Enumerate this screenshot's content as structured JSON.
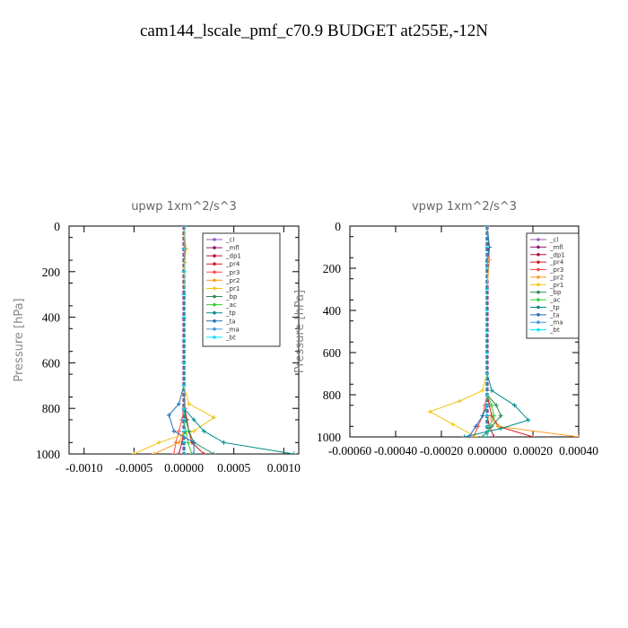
{
  "figure": {
    "title": "cam144_lscale_pmf_c70.9  BUDGET at255E,-12N"
  },
  "legend_entries": [
    {
      "label": "_cl",
      "color": "#9b59b6"
    },
    {
      "label": "_mfl",
      "color": "#8e1a6e"
    },
    {
      "label": "_dp1",
      "color": "#b0103c"
    },
    {
      "label": "_pr4",
      "color": "#cc1f1f"
    },
    {
      "label": "_pr3",
      "color": "#ff4d4d"
    },
    {
      "label": "_pr2",
      "color": "#ff9f1a"
    },
    {
      "label": "_pr1",
      "color": "#f1c40f"
    },
    {
      "label": "_bp",
      "color": "#2e8b57"
    },
    {
      "label": "_ac",
      "color": "#32cd32"
    },
    {
      "label": "_tp",
      "color": "#008b8b"
    },
    {
      "label": "_ta",
      "color": "#1f6fb4"
    },
    {
      "label": "_ma",
      "color": "#3d9bd9"
    },
    {
      "label": "_bt",
      "color": "#00e5ff"
    }
  ],
  "chart_data": [
    {
      "type": "line",
      "title": "upwp   1xm^2/s^3",
      "ylabel": "Pressure [hPa]",
      "xlabel": "",
      "y_axis_inverted": true,
      "xlim": [
        -0.00115,
        0.00115
      ],
      "ylim": [
        0,
        1000
      ],
      "xticks": [
        -0.001,
        -0.0005,
        0.0,
        0.0005,
        0.001
      ],
      "xtick_labels": [
        "-0.0010",
        "-0.0005",
        "0.00000",
        "0.0005",
        "0.0010"
      ],
      "yticks": [
        0,
        200,
        400,
        600,
        800,
        1000
      ],
      "ytick_labels": [
        "0",
        "200",
        "400",
        "600",
        "800",
        "1000"
      ],
      "legend_position": "top-right",
      "series": [
        {
          "name": "_cl",
          "x": [
            0,
            0,
            0,
            0,
            0,
            0,
            0,
            0,
            0,
            0,
            0,
            0,
            0
          ],
          "y": [
            0,
            100,
            200,
            300,
            400,
            500,
            600,
            700,
            800,
            850,
            900,
            950,
            1000
          ]
        },
        {
          "name": "_mfl",
          "x": [
            0,
            0,
            0,
            0,
            0,
            0,
            0,
            0,
            0,
            0,
            0,
            0,
            0
          ],
          "y": [
            0,
            100,
            200,
            300,
            400,
            500,
            600,
            700,
            800,
            850,
            900,
            950,
            1000
          ]
        },
        {
          "name": "_dp1",
          "x": [
            0,
            0,
            0,
            0,
            0,
            0,
            0,
            0,
            0,
            0,
            0,
            -2e-05,
            -5e-05
          ],
          "y": [
            0,
            100,
            200,
            300,
            400,
            500,
            600,
            700,
            800,
            850,
            900,
            950,
            1000
          ]
        },
        {
          "name": "_pr4",
          "x": [
            0,
            0,
            0,
            0,
            0,
            0,
            0,
            0,
            1e-05,
            3e-05,
            5e-05,
            8e-05,
            0.0002
          ],
          "y": [
            0,
            100,
            200,
            300,
            400,
            500,
            600,
            700,
            800,
            850,
            900,
            950,
            1000
          ]
        },
        {
          "name": "_pr3",
          "x": [
            0,
            1e-05,
            0,
            0,
            0,
            0,
            0,
            0,
            0,
            -2e-05,
            -5e-05,
            -8e-05,
            -0.0001
          ],
          "y": [
            0,
            100,
            200,
            300,
            400,
            500,
            600,
            700,
            800,
            850,
            900,
            950,
            1000
          ]
        },
        {
          "name": "_pr2",
          "x": [
            0,
            2e-05,
            1e-05,
            0,
            0,
            0,
            0,
            0,
            0,
            0,
            0,
            -5e-05,
            -0.0003
          ],
          "y": [
            0,
            100,
            160,
            300,
            400,
            500,
            600,
            700,
            800,
            850,
            900,
            950,
            1000
          ]
        },
        {
          "name": "_pr1",
          "x": [
            0,
            0,
            0,
            0,
            0,
            0,
            0,
            0,
            5e-05,
            0.0003,
            0.0001,
            -0.00025,
            -0.0005
          ],
          "y": [
            0,
            100,
            200,
            300,
            400,
            500,
            600,
            700,
            780,
            840,
            900,
            950,
            1000
          ]
        },
        {
          "name": "_bp",
          "x": [
            0,
            0,
            0,
            0,
            0,
            0,
            0,
            0,
            0,
            2e-05,
            5e-05,
            0.0001,
            0.0003
          ],
          "y": [
            0,
            100,
            200,
            300,
            400,
            500,
            600,
            700,
            800,
            850,
            900,
            950,
            1000
          ]
        },
        {
          "name": "_ac",
          "x": [
            0,
            0,
            0,
            0,
            0,
            0,
            0,
            0,
            0,
            0,
            2e-05,
            4e-05,
            8e-05
          ],
          "y": [
            0,
            100,
            200,
            300,
            400,
            500,
            600,
            700,
            800,
            850,
            900,
            950,
            1000
          ]
        },
        {
          "name": "_tp",
          "x": [
            0,
            0,
            0,
            0,
            0,
            0,
            0,
            0,
            0,
            0.0001,
            0.0002,
            0.0004,
            0.0011
          ],
          "y": [
            0,
            100,
            200,
            300,
            400,
            500,
            600,
            700,
            800,
            850,
            900,
            950,
            1000
          ]
        },
        {
          "name": "_ta",
          "x": [
            0,
            0,
            0,
            0,
            0,
            0,
            0,
            0,
            -5e-05,
            -0.00015,
            -0.0001,
            0.0001,
            0.0001
          ],
          "y": [
            0,
            100,
            200,
            300,
            400,
            500,
            600,
            700,
            780,
            830,
            900,
            950,
            1000
          ]
        },
        {
          "name": "_ma",
          "x": [
            0,
            0,
            0,
            0,
            0,
            0,
            0,
            0,
            0,
            0,
            0,
            0,
            0
          ],
          "y": [
            0,
            100,
            200,
            300,
            400,
            500,
            600,
            700,
            800,
            850,
            900,
            950,
            1000
          ]
        },
        {
          "name": "_bt",
          "x": [
            0,
            0,
            0,
            0,
            0,
            0,
            0,
            0,
            0,
            0,
            0,
            0,
            0
          ],
          "y": [
            0,
            100,
            200,
            300,
            400,
            500,
            600,
            700,
            800,
            850,
            900,
            950,
            1000
          ]
        }
      ]
    },
    {
      "type": "line",
      "title": "vpwp   1xm^2/s^3",
      "ylabel": "Pressure [hPa]",
      "xlabel": "",
      "y_axis_inverted": true,
      "xlim": [
        -0.0006,
        0.0004
      ],
      "ylim": [
        0,
        1000
      ],
      "xticks": [
        -0.0006,
        -0.0004,
        -0.0002,
        0.0,
        0.0002,
        0.0004
      ],
      "xtick_labels": [
        "-0.00060",
        "-0.00040",
        "-0.00020",
        "0.00000",
        "0.00020",
        "0.00040"
      ],
      "yticks": [
        0,
        200,
        400,
        600,
        800,
        1000
      ],
      "ytick_labels": [
        "0",
        "200",
        "400",
        "600",
        "800",
        "1000"
      ],
      "legend_position": "top-right",
      "series": [
        {
          "name": "_cl",
          "x": [
            0,
            0,
            0,
            0,
            0,
            0,
            0,
            0,
            0,
            0,
            0,
            0,
            0
          ],
          "y": [
            0,
            100,
            200,
            300,
            400,
            500,
            600,
            700,
            800,
            850,
            900,
            950,
            1000
          ]
        },
        {
          "name": "_mfl",
          "x": [
            0,
            0,
            0,
            0,
            0,
            0,
            0,
            0,
            0,
            0,
            0,
            0,
            0
          ],
          "y": [
            0,
            100,
            200,
            300,
            400,
            500,
            600,
            700,
            800,
            850,
            900,
            950,
            1000
          ]
        },
        {
          "name": "_dp1",
          "x": [
            0,
            0,
            0,
            0,
            0,
            0,
            0,
            0,
            0,
            0,
            0,
            1e-05,
            3e-05
          ],
          "y": [
            0,
            100,
            200,
            300,
            400,
            500,
            600,
            700,
            800,
            850,
            900,
            950,
            1000
          ]
        },
        {
          "name": "_pr4",
          "x": [
            0,
            0,
            0,
            0,
            0,
            0,
            0,
            0,
            0,
            1e-05,
            2e-05,
            5e-05,
            0.0002
          ],
          "y": [
            0,
            100,
            200,
            300,
            400,
            500,
            600,
            700,
            800,
            850,
            900,
            950,
            1000
          ]
        },
        {
          "name": "_pr3",
          "x": [
            0,
            1e-05,
            0,
            0,
            0,
            0,
            0,
            0,
            0,
            -1e-05,
            -2e-05,
            -4e-05,
            -6e-05
          ],
          "y": [
            0,
            100,
            200,
            300,
            400,
            500,
            600,
            700,
            800,
            850,
            900,
            950,
            1000
          ]
        },
        {
          "name": "_pr2",
          "x": [
            0,
            1e-05,
            1e-05,
            0,
            0,
            0,
            0,
            0,
            0,
            0,
            0,
            5e-05,
            0.0004
          ],
          "y": [
            0,
            100,
            160,
            300,
            400,
            500,
            600,
            700,
            800,
            850,
            900,
            950,
            1000
          ]
        },
        {
          "name": "_pr1",
          "x": [
            0,
            0,
            0,
            0,
            0,
            0,
            0,
            0,
            -2e-05,
            -0.00012,
            -0.00025,
            -0.00015,
            -5e-05
          ],
          "y": [
            0,
            100,
            200,
            300,
            400,
            500,
            600,
            700,
            780,
            830,
            880,
            940,
            1000
          ]
        },
        {
          "name": "_bp",
          "x": [
            0,
            0,
            0,
            0,
            0,
            0,
            0,
            0,
            0,
            4e-05,
            6e-05,
            2e-05,
            -2e-05
          ],
          "y": [
            0,
            100,
            200,
            300,
            400,
            500,
            600,
            700,
            800,
            850,
            900,
            950,
            1000
          ]
        },
        {
          "name": "_ac",
          "x": [
            0,
            0,
            0,
            0,
            0,
            0,
            0,
            0,
            0,
            2e-05,
            3e-05,
            1e-05,
            0
          ],
          "y": [
            0,
            100,
            200,
            300,
            400,
            500,
            600,
            700,
            800,
            850,
            900,
            950,
            1000
          ]
        },
        {
          "name": "_tp",
          "x": [
            0,
            0,
            0,
            0,
            0,
            0,
            0,
            0,
            2e-05,
            0.00012,
            0.00018,
            6e-05,
            -0.0001
          ],
          "y": [
            0,
            100,
            200,
            300,
            400,
            500,
            600,
            700,
            780,
            850,
            920,
            960,
            1000
          ]
        },
        {
          "name": "_ta",
          "x": [
            0,
            1e-05,
            0,
            0,
            0,
            0,
            0,
            0,
            0,
            0,
            -2e-05,
            -5e-05,
            -8e-05
          ],
          "y": [
            0,
            100,
            170,
            300,
            400,
            500,
            600,
            700,
            800,
            850,
            900,
            950,
            1000
          ]
        },
        {
          "name": "_ma",
          "x": [
            0,
            0,
            0,
            0,
            0,
            0,
            0,
            0,
            0,
            0,
            0,
            0,
            0
          ],
          "y": [
            0,
            100,
            200,
            300,
            400,
            500,
            600,
            700,
            800,
            850,
            900,
            950,
            1000
          ]
        },
        {
          "name": "_bt",
          "x": [
            0,
            0,
            0,
            0,
            0,
            0,
            0,
            0,
            0,
            0,
            0,
            0,
            0
          ],
          "y": [
            0,
            100,
            200,
            300,
            400,
            500,
            600,
            700,
            800,
            850,
            900,
            950,
            1000
          ]
        }
      ]
    }
  ]
}
